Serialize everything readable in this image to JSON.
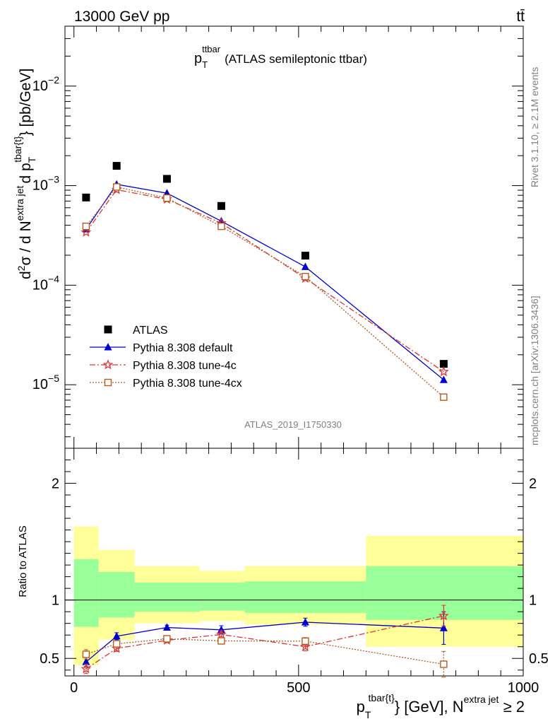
{
  "header": {
    "left": "13000 GeV pp",
    "right": "tt̄"
  },
  "side": {
    "rivet": "Rivet 3.1.10, ≥ 2.1M events",
    "mcplots": "mcplots.cern.ch [arXiv:1306.3436]"
  },
  "chart_data": [
    {
      "type": "scatter",
      "panel": "main",
      "title": "p_T^ttbar (ATLAS semileptonic ttbar)",
      "title_main": "p",
      "title_sub": "T",
      "title_sup": "ttbar",
      "title_rest": "(ATLAS semileptonic ttbar)",
      "analysis_label": "ATLAS_2019_I1750330",
      "ylabel_main": "d",
      "ylabel_parts": [
        "d",
        "2",
        "σ  /  d N",
        "extra jet",
        "d p",
        "T",
        "tbar{t}",
        "} [pb/GeV]"
      ],
      "yscale": "log",
      "ylim": [
        2.3e-06,
        0.04
      ],
      "xlim": [
        -20,
        1000
      ],
      "yticks": [
        {
          "value": 1e-05,
          "base": "10",
          "exp": "−5"
        },
        {
          "value": 0.0001,
          "base": "10",
          "exp": "−4"
        },
        {
          "value": 0.001,
          "base": "10",
          "exp": "−3"
        },
        {
          "value": 0.01,
          "base": "10",
          "exp": "−2"
        }
      ],
      "legend_placement": "lower-left",
      "series": [
        {
          "name": "ATLAS",
          "color": "#000000",
          "marker": "square",
          "x": [
            27,
            95,
            207,
            328,
            515,
            823
          ],
          "y": [
            0.00076,
            0.00158,
            0.00117,
            0.000625,
            0.000198,
            1.62e-05
          ]
        },
        {
          "name": "Pythia 8.308 default",
          "color": "#0000cc",
          "marker": "triangle",
          "line": "solid",
          "x": [
            27,
            95,
            207,
            328,
            515,
            823
          ],
          "y": [
            0.000365,
            0.00103,
            0.00084,
            0.00044,
            0.000153,
            1.12e-05
          ]
        },
        {
          "name": "Pythia 8.308 tune-4c",
          "color": "#dd3333",
          "marker": "star",
          "line": "dashdot",
          "x": [
            27,
            95,
            207,
            328,
            515,
            823
          ],
          "y": [
            0.00034,
            0.00091,
            0.00073,
            0.00042,
            0.000117,
            1.35e-05
          ]
        },
        {
          "name": "Pythia 8.308 tune-4cx",
          "color": "#b85c1e",
          "marker": "open-square",
          "line": "dotted",
          "x": [
            27,
            95,
            207,
            328,
            515,
            823
          ],
          "y": [
            0.00039,
            0.00097,
            0.00075,
            0.00039,
            0.000122,
            7.5e-06
          ]
        }
      ]
    },
    {
      "type": "scatter",
      "panel": "ratio",
      "ylabel": "Ratio to ATLAS",
      "xlim": [
        -20,
        1000
      ],
      "ylim": [
        0.35,
        2.3
      ],
      "xticks": [
        0,
        500,
        1000
      ],
      "yticks": [
        0.5,
        1,
        2
      ],
      "reference": 1,
      "bands": {
        "edges": [
          0,
          55,
          135,
          280,
          380,
          650,
          1000
        ],
        "yellow_lo": [
          0.44,
          0.66,
          0.8,
          0.82,
          0.79,
          0.6
        ],
        "yellow_hi": [
          1.63,
          1.43,
          1.29,
          1.25,
          1.29,
          1.55
        ],
        "green_lo": [
          0.77,
          0.85,
          0.9,
          0.91,
          0.89,
          0.83
        ],
        "green_hi": [
          1.35,
          1.24,
          1.15,
          1.15,
          1.16,
          1.29
        ]
      },
      "series": [
        {
          "name": "Pythia 8.308 default",
          "color": "#0000cc",
          "x": [
            27,
            95,
            207,
            328,
            515,
            823
          ],
          "y": [
            0.47,
            0.69,
            0.765,
            0.745,
            0.81,
            0.76
          ],
          "err": [
            0.04,
            0.03,
            0.02,
            0.035,
            0.035,
            0.14
          ]
        },
        {
          "name": "Pythia 8.308 tune-4c",
          "color": "#dd3333",
          "x": [
            27,
            95,
            207,
            328,
            515,
            823
          ],
          "y": [
            0.41,
            0.585,
            0.655,
            0.705,
            0.6,
            0.865
          ],
          "err": [
            0.04,
            0.025,
            0.02,
            0.03,
            0.035,
            0.09
          ]
        },
        {
          "name": "Pythia 8.308 tune-4cx",
          "color": "#b85c1e",
          "x": [
            27,
            95,
            207,
            328,
            515,
            823
          ],
          "y": [
            0.535,
            0.625,
            0.668,
            0.65,
            0.648,
            0.45
          ],
          "err": [
            0.04,
            0.02,
            0.015,
            0.025,
            0.03,
            0.11
          ]
        }
      ],
      "xlabel_parts": [
        "p",
        "T",
        "tbar{t}",
        "} [GeV], N",
        "extra jet",
        " ≥ 2"
      ]
    }
  ]
}
